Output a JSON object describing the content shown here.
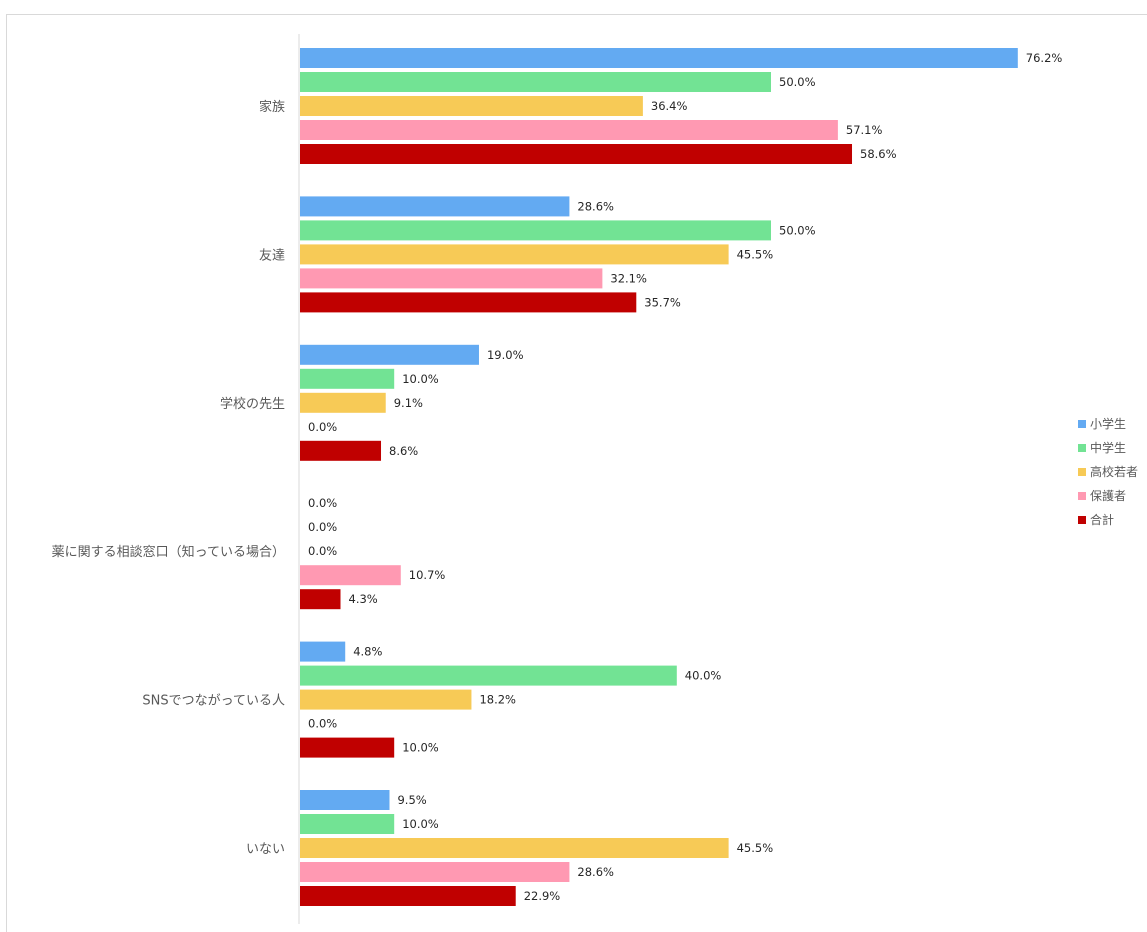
{
  "chart_data": {
    "type": "bar",
    "orientation": "horizontal",
    "categories": [
      "家族",
      "友達",
      "学校の先生",
      "薬に関する相談窓口（知っている場合）",
      "SNSでつながっている人",
      "いない"
    ],
    "series": [
      {
        "name": "小学生",
        "color": "#63aaf2",
        "values": [
          76.2,
          28.6,
          19.0,
          0.0,
          4.8,
          9.5
        ]
      },
      {
        "name": "中学生",
        "color": "#72e394",
        "values": [
          50.0,
          50.0,
          10.0,
          0.0,
          40.0,
          10.0
        ]
      },
      {
        "name": "高校若者",
        "color": "#f7ca56",
        "values": [
          36.4,
          45.5,
          9.1,
          0.0,
          18.2,
          45.5
        ]
      },
      {
        "name": "保護者",
        "color": "#ff99b2",
        "values": [
          57.1,
          32.1,
          0.0,
          10.7,
          0.0,
          28.6
        ]
      },
      {
        "name": "合計",
        "color": "#c00000",
        "values": [
          58.6,
          35.7,
          8.6,
          4.3,
          10.0,
          22.9
        ]
      }
    ],
    "value_suffix": "%",
    "xlim": [
      0,
      100
    ],
    "grid": false,
    "legend": "right"
  }
}
